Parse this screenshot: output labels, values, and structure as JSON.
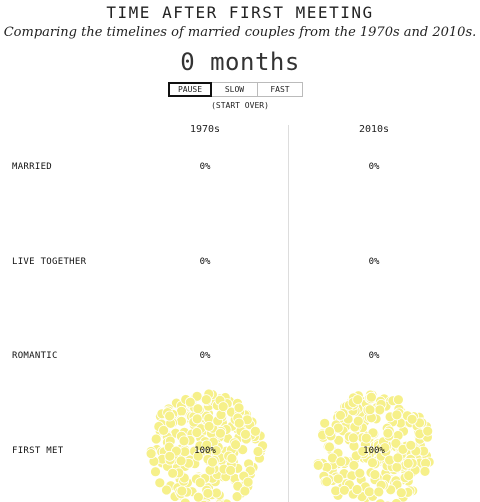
{
  "title": "TIME AFTER FIRST MEETING",
  "subtitle": "Comparing the timelines of married couples from the 1970s and 2010s.",
  "timer": "0 months",
  "controls": {
    "pause": "PAUSE",
    "slow": "SLOW",
    "fast": "FAST",
    "start_over": "(START OVER)",
    "active": "pause"
  },
  "colors": {
    "dots": "#f6f08a",
    "dot_stroke": "#ffffff",
    "divider": "#dddddd"
  },
  "chart_data": {
    "type": "unit-dot-distribution",
    "columns": [
      "1970s",
      "2010s"
    ],
    "stages": [
      "MARRIED",
      "LIVE TOGETHER",
      "ROMANTIC",
      "FIRST MET"
    ],
    "values": {
      "1970s": [
        0,
        0,
        0,
        100
      ],
      "2010s": [
        0,
        0,
        0,
        100
      ]
    },
    "labels": {
      "1970s": [
        "0%",
        "0%",
        "0%",
        "100%"
      ],
      "2010s": [
        "0%",
        "0%",
        "0%",
        "100%"
      ]
    }
  }
}
